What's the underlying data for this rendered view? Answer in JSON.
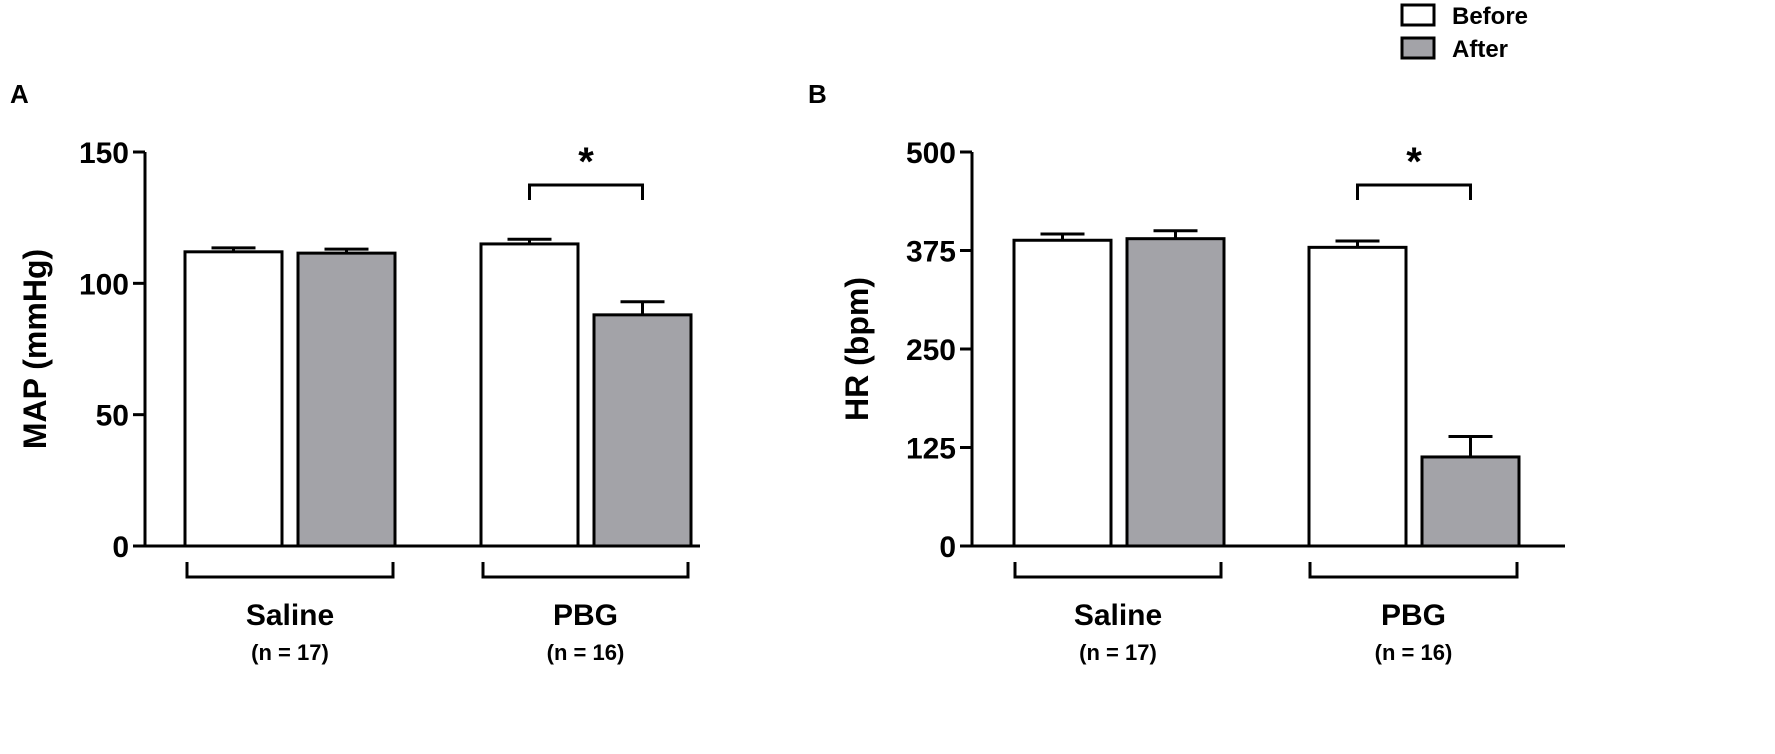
{
  "legend": {
    "items": [
      {
        "label": "Before",
        "color": "#ffffff"
      },
      {
        "label": "After",
        "color": "#a3a3a8"
      }
    ]
  },
  "chart_data": [
    {
      "panel": "A",
      "type": "bar",
      "ylabel": "MAP (mmHg)",
      "ylim": [
        0,
        150
      ],
      "yticks": [
        0,
        50,
        100,
        150
      ],
      "categories": [
        {
          "label": "Saline",
          "n": "(n = 17)"
        },
        {
          "label": "PBG",
          "n": "(n = 16)"
        }
      ],
      "series": [
        {
          "name": "Before",
          "color": "#ffffff",
          "values": [
            112,
            115
          ],
          "errors": [
            1.5,
            1.8
          ]
        },
        {
          "name": "After",
          "color": "#a3a3a8",
          "values": [
            111.5,
            88
          ],
          "errors": [
            1.5,
            5
          ]
        }
      ],
      "significance": [
        {
          "category": "PBG",
          "label": "*"
        }
      ]
    },
    {
      "panel": "B",
      "type": "bar",
      "ylabel": "HR (bpm)",
      "ylim": [
        0,
        500
      ],
      "yticks": [
        0,
        125,
        250,
        375,
        500
      ],
      "categories": [
        {
          "label": "Saline",
          "n": "(n = 17)"
        },
        {
          "label": "PBG",
          "n": "(n = 16)"
        }
      ],
      "series": [
        {
          "name": "Before",
          "color": "#ffffff",
          "values": [
            388,
            379
          ],
          "errors": [
            8,
            8
          ]
        },
        {
          "name": "After",
          "color": "#a3a3a8",
          "values": [
            390,
            113
          ],
          "errors": [
            10,
            26
          ]
        }
      ],
      "significance": [
        {
          "category": "PBG",
          "label": "*"
        }
      ]
    }
  ]
}
